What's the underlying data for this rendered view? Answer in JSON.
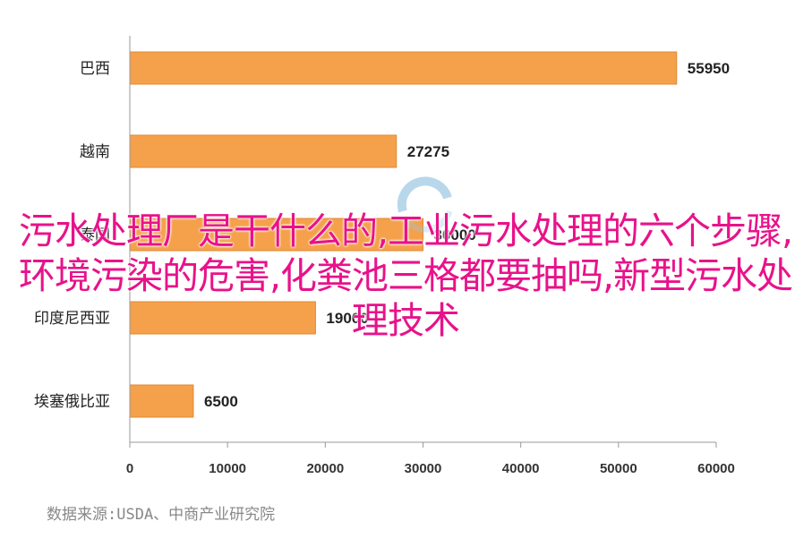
{
  "chart_data": {
    "type": "bar",
    "orientation": "horizontal",
    "categories": [
      "巴西",
      "越南",
      "泰国",
      "印度尼西亚",
      "埃塞俄比亚"
    ],
    "values": [
      55950,
      27275,
      30000,
      19000,
      6500
    ],
    "data_labels": [
      "55950",
      "27275",
      "30000",
      "19000",
      "6500"
    ],
    "xlim": [
      0,
      60000
    ],
    "xticks": [
      0,
      10000,
      20000,
      30000,
      40000,
      50000,
      60000
    ],
    "grid": false,
    "legend": "none",
    "bar_color": "#f5a04a",
    "bar_edge_color": "#e08a34"
  },
  "source_text": "数据来源:USDA、中商产业研究院",
  "overlay_title": "污水处理厂是干什么的,工业污水处理的六个步骤,环境污染的危害,化粪池三格都要抽吗,新型污水处理技术",
  "colors": {
    "overlay_text": "#e8128a",
    "axis": "#999999"
  }
}
